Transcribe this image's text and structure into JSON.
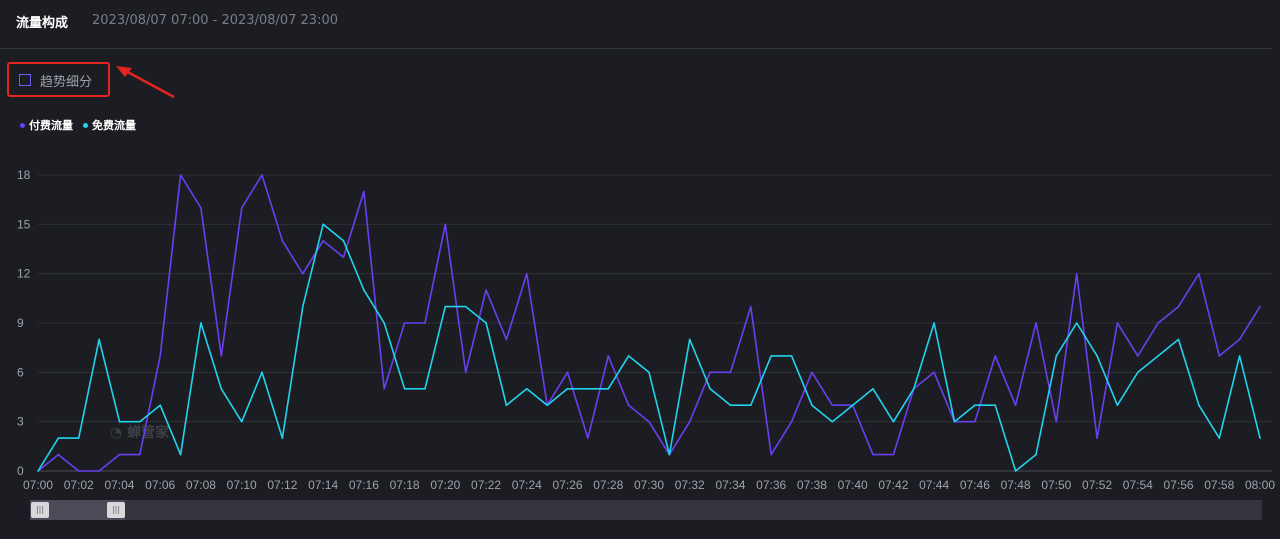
{
  "header": {
    "title": "流量构成",
    "date_range": "2023/08/07 07:00 - 2023/08/07 23:00"
  },
  "controls": {
    "trend_checkbox_label": "趋势细分"
  },
  "watermark": "蝉管家",
  "colors": {
    "paid": "#6a3ff0",
    "free": "#22d3ee",
    "highlight_box": "#e5231f"
  },
  "chart_data": {
    "type": "line",
    "title": "",
    "xlabel": "",
    "ylabel": "",
    "ylim": [
      0,
      18
    ],
    "yticks": [
      0,
      3,
      6,
      9,
      12,
      15,
      18
    ],
    "grid": true,
    "legend_position": "top-left",
    "x_tick_labels": [
      "07:00",
      "07:02",
      "07:04",
      "07:06",
      "07:08",
      "07:10",
      "07:12",
      "07:14",
      "07:16",
      "07:18",
      "07:20",
      "07:22",
      "07:24",
      "07:26",
      "07:28",
      "07:30",
      "07:32",
      "07:34",
      "07:36",
      "07:38",
      "07:40",
      "07:42",
      "07:44",
      "07:46",
      "07:48",
      "07:50",
      "07:52",
      "07:54",
      "07:56",
      "07:58",
      "08:00"
    ],
    "x_minutes": [
      0,
      1,
      2,
      3,
      4,
      5,
      6,
      7,
      8,
      9,
      10,
      11,
      12,
      13,
      14,
      15,
      16,
      17,
      18,
      19,
      20,
      21,
      22,
      23,
      24,
      25,
      26,
      27,
      28,
      29,
      30,
      31,
      32,
      33,
      34,
      35,
      36,
      37,
      38,
      39,
      40,
      41,
      42,
      43,
      44,
      45,
      46,
      47,
      48,
      49,
      50,
      51,
      52,
      53,
      54,
      55,
      56,
      57,
      58,
      59,
      60
    ],
    "series": [
      {
        "name": "付费流量",
        "color": "#6a3ff0",
        "values": [
          0,
          1,
          0,
          0,
          1,
          1,
          7,
          18,
          16,
          7,
          16,
          18,
          14,
          12,
          14,
          13,
          17,
          5,
          9,
          9,
          15,
          6,
          11,
          8,
          12,
          4,
          6,
          2,
          7,
          4,
          3,
          1,
          3,
          6,
          6,
          10,
          1,
          3,
          6,
          4,
          4,
          1,
          1,
          5,
          6,
          3,
          3,
          7,
          4,
          9,
          3,
          12,
          2,
          9,
          7,
          9,
          10,
          12,
          7,
          8,
          10
        ]
      },
      {
        "name": "免费流量",
        "color": "#22d3ee",
        "values": [
          0,
          2,
          2,
          8,
          3,
          3,
          4,
          1,
          9,
          5,
          3,
          6,
          2,
          10,
          15,
          14,
          11,
          9,
          5,
          5,
          10,
          10,
          9,
          4,
          5,
          4,
          5,
          5,
          5,
          7,
          6,
          1,
          8,
          5,
          4,
          4,
          7,
          7,
          4,
          3,
          4,
          5,
          3,
          5,
          9,
          3,
          4,
          4,
          0,
          1,
          7,
          9,
          7,
          4,
          6,
          7,
          8,
          4,
          2,
          7,
          2
        ]
      }
    ]
  }
}
